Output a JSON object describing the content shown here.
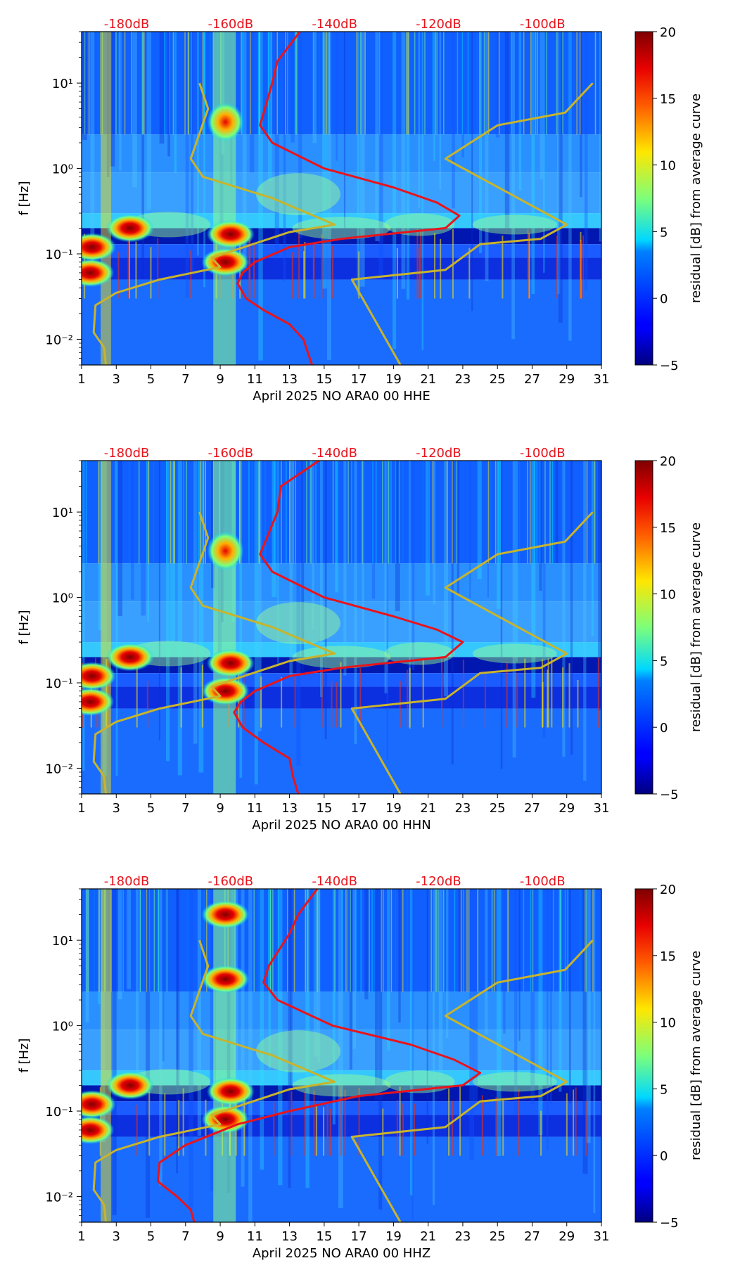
{
  "chart_data": [
    {
      "type": "heatmap",
      "xlabel": "April 2025 NO ARA0 00 HHE",
      "ylabel": "f [Hz]",
      "colorbar_label": "residual [dB] from average curve",
      "x_ticks": [
        "1",
        "3",
        "5",
        "7",
        "9",
        "11",
        "13",
        "15",
        "17",
        "19",
        "21",
        "23",
        "25",
        "27",
        "29",
        "31"
      ],
      "xlim": [
        1,
        31
      ],
      "y_ticks": [
        "10⁻²",
        "10⁻¹",
        "10⁰",
        "10¹"
      ],
      "ylim_hz": [
        0.005,
        40
      ],
      "db_labels": [
        "-180dB",
        "-160dB",
        "-140dB",
        "-120dB",
        "-100dB"
      ],
      "colorbar_ticks": [
        "20",
        "15",
        "10",
        "5",
        "0",
        "−5"
      ],
      "colorbar_range": [
        -5,
        20
      ],
      "avg_curve_points": [
        [
          13.6,
          40
        ],
        [
          12.3,
          18
        ],
        [
          12.0,
          10
        ],
        [
          11.3,
          3.2
        ],
        [
          12.0,
          2
        ],
        [
          15.0,
          1
        ],
        [
          19.0,
          0.6
        ],
        [
          21.5,
          0.4
        ],
        [
          22.8,
          0.28
        ],
        [
          22.0,
          0.2
        ],
        [
          16.0,
          0.15
        ],
        [
          13.0,
          0.12
        ],
        [
          11.0,
          0.08
        ],
        [
          10.3,
          0.06
        ],
        [
          10.0,
          0.045
        ],
        [
          10.5,
          0.03
        ],
        [
          11.5,
          0.022
        ],
        [
          13.0,
          0.015
        ],
        [
          13.8,
          0.01
        ],
        [
          14.3,
          0.005
        ]
      ],
      "noise_model_low": [
        [
          7.8,
          10
        ],
        [
          8.3,
          5
        ],
        [
          7.3,
          1.3
        ],
        [
          8.0,
          0.8
        ],
        [
          12.0,
          0.45
        ],
        [
          15.6,
          0.22
        ],
        [
          13.0,
          0.18
        ],
        [
          8.5,
          0.09
        ],
        [
          9.0,
          0.07
        ],
        [
          5.5,
          0.05
        ],
        [
          3.0,
          0.035
        ],
        [
          1.8,
          0.025
        ],
        [
          1.7,
          0.012
        ],
        [
          2.3,
          0.008
        ],
        [
          2.4,
          0.005
        ]
      ],
      "noise_model_high": [
        [
          30.5,
          10
        ],
        [
          28.9,
          4.5
        ],
        [
          25.0,
          3.2
        ],
        [
          22.0,
          1.3
        ],
        [
          29.0,
          0.22
        ],
        [
          27.5,
          0.15
        ],
        [
          24.0,
          0.13
        ],
        [
          22.0,
          0.065
        ],
        [
          16.6,
          0.05
        ],
        [
          19.4,
          0.005
        ]
      ],
      "hotspots": [
        {
          "day": 1.6,
          "freq": 0.12,
          "level": "high"
        },
        {
          "day": 3.8,
          "freq": 0.2,
          "level": "high"
        },
        {
          "day": 9.6,
          "freq": 0.17,
          "level": "high"
        },
        {
          "day": 9.3,
          "freq": 3.5,
          "level": "medium"
        },
        {
          "day": 9.3,
          "freq": 0.08,
          "level": "high"
        },
        {
          "day": 1.5,
          "freq": 0.06,
          "level": "high"
        }
      ]
    },
    {
      "type": "heatmap",
      "xlabel": "April 2025 NO ARA0 00 HHN",
      "ylabel": "f [Hz]",
      "colorbar_label": "residual [dB] from average curve",
      "x_ticks": [
        "1",
        "3",
        "5",
        "7",
        "9",
        "11",
        "13",
        "15",
        "17",
        "19",
        "21",
        "23",
        "25",
        "27",
        "29",
        "31"
      ],
      "xlim": [
        1,
        31
      ],
      "y_ticks": [
        "10⁻²",
        "10⁻¹",
        "10⁰",
        "10¹"
      ],
      "ylim_hz": [
        0.005,
        40
      ],
      "db_labels": [
        "-180dB",
        "-160dB",
        "-140dB",
        "-120dB",
        "-100dB"
      ],
      "colorbar_ticks": [
        "20",
        "15",
        "10",
        "5",
        "0",
        "−5"
      ],
      "colorbar_range": [
        -5,
        20
      ],
      "avg_curve_points": [
        [
          14.7,
          40
        ],
        [
          12.5,
          20
        ],
        [
          12.3,
          10
        ],
        [
          11.3,
          3.2
        ],
        [
          12.0,
          2
        ],
        [
          15.0,
          1
        ],
        [
          19.0,
          0.6
        ],
        [
          21.5,
          0.42
        ],
        [
          23.0,
          0.3
        ],
        [
          22.0,
          0.2
        ],
        [
          16.0,
          0.15
        ],
        [
          13.0,
          0.12
        ],
        [
          11.0,
          0.08
        ],
        [
          10.2,
          0.06
        ],
        [
          9.8,
          0.045
        ],
        [
          10.3,
          0.03
        ],
        [
          11.5,
          0.02
        ],
        [
          13.0,
          0.013
        ],
        [
          13.2,
          0.008
        ],
        [
          13.5,
          0.005
        ]
      ],
      "noise_model_low": [
        [
          7.8,
          10
        ],
        [
          8.3,
          5
        ],
        [
          7.3,
          1.3
        ],
        [
          8.0,
          0.8
        ],
        [
          12.0,
          0.45
        ],
        [
          15.6,
          0.22
        ],
        [
          13.0,
          0.18
        ],
        [
          8.5,
          0.09
        ],
        [
          9.0,
          0.07
        ],
        [
          5.5,
          0.05
        ],
        [
          3.0,
          0.035
        ],
        [
          1.8,
          0.025
        ],
        [
          1.7,
          0.012
        ],
        [
          2.3,
          0.008
        ],
        [
          2.4,
          0.005
        ]
      ],
      "noise_model_high": [
        [
          30.5,
          10
        ],
        [
          28.9,
          4.5
        ],
        [
          25.0,
          3.2
        ],
        [
          22.0,
          1.3
        ],
        [
          29.0,
          0.22
        ],
        [
          27.5,
          0.15
        ],
        [
          24.0,
          0.13
        ],
        [
          22.0,
          0.065
        ],
        [
          16.6,
          0.05
        ],
        [
          19.4,
          0.005
        ]
      ],
      "hotspots": [
        {
          "day": 1.6,
          "freq": 0.12,
          "level": "high"
        },
        {
          "day": 3.8,
          "freq": 0.2,
          "level": "high"
        },
        {
          "day": 9.6,
          "freq": 0.17,
          "level": "high"
        },
        {
          "day": 9.3,
          "freq": 3.5,
          "level": "medium"
        },
        {
          "day": 9.3,
          "freq": 0.08,
          "level": "high"
        },
        {
          "day": 1.5,
          "freq": 0.06,
          "level": "high"
        }
      ]
    },
    {
      "type": "heatmap",
      "xlabel": "April 2025 NO ARA0 00 HHZ",
      "ylabel": "f [Hz]",
      "colorbar_label": "residual [dB] from average curve",
      "x_ticks": [
        "1",
        "3",
        "5",
        "7",
        "9",
        "11",
        "13",
        "15",
        "17",
        "19",
        "21",
        "23",
        "25",
        "27",
        "29",
        "31"
      ],
      "xlim": [
        1,
        31
      ],
      "y_ticks": [
        "10⁻²",
        "10⁻¹",
        "10⁰",
        "10¹"
      ],
      "ylim_hz": [
        0.005,
        40
      ],
      "db_labels": [
        "-180dB",
        "-160dB",
        "-140dB",
        "-120dB",
        "-100dB"
      ],
      "colorbar_ticks": [
        "20",
        "15",
        "10",
        "5",
        "0",
        "−5"
      ],
      "colorbar_range": [
        -5,
        20
      ],
      "avg_curve_points": [
        [
          14.6,
          40
        ],
        [
          13.5,
          20
        ],
        [
          13.0,
          12
        ],
        [
          11.8,
          5
        ],
        [
          11.5,
          3.2
        ],
        [
          12.3,
          2
        ],
        [
          15.5,
          1
        ],
        [
          20.0,
          0.6
        ],
        [
          22.5,
          0.4
        ],
        [
          24.0,
          0.28
        ],
        [
          23.0,
          0.2
        ],
        [
          17.0,
          0.15
        ],
        [
          13.0,
          0.1
        ],
        [
          10.0,
          0.07
        ],
        [
          7.0,
          0.04
        ],
        [
          5.5,
          0.025
        ],
        [
          5.4,
          0.015
        ],
        [
          6.5,
          0.01
        ],
        [
          7.3,
          0.007
        ],
        [
          7.5,
          0.005
        ]
      ],
      "noise_model_low": [
        [
          7.8,
          10
        ],
        [
          8.3,
          5
        ],
        [
          7.3,
          1.3
        ],
        [
          8.0,
          0.8
        ],
        [
          12.0,
          0.45
        ],
        [
          15.6,
          0.22
        ],
        [
          13.0,
          0.18
        ],
        [
          8.5,
          0.09
        ],
        [
          9.0,
          0.07
        ],
        [
          5.5,
          0.05
        ],
        [
          3.0,
          0.035
        ],
        [
          1.8,
          0.025
        ],
        [
          1.7,
          0.012
        ],
        [
          2.3,
          0.008
        ],
        [
          2.4,
          0.005
        ]
      ],
      "noise_model_high": [
        [
          30.5,
          10
        ],
        [
          28.9,
          4.5
        ],
        [
          25.0,
          3.2
        ],
        [
          22.0,
          1.3
        ],
        [
          29.0,
          0.22
        ],
        [
          27.5,
          0.15
        ],
        [
          24.0,
          0.13
        ],
        [
          22.0,
          0.065
        ],
        [
          16.6,
          0.05
        ],
        [
          19.4,
          0.005
        ]
      ],
      "hotspots": [
        {
          "day": 1.6,
          "freq": 0.12,
          "level": "high"
        },
        {
          "day": 3.8,
          "freq": 0.2,
          "level": "high"
        },
        {
          "day": 9.6,
          "freq": 0.17,
          "level": "high"
        },
        {
          "day": 9.3,
          "freq": 3.5,
          "level": "high"
        },
        {
          "day": 9.3,
          "freq": 20,
          "level": "high"
        },
        {
          "day": 9.3,
          "freq": 0.08,
          "level": "high"
        },
        {
          "day": 1.5,
          "freq": 0.06,
          "level": "high"
        }
      ]
    }
  ]
}
